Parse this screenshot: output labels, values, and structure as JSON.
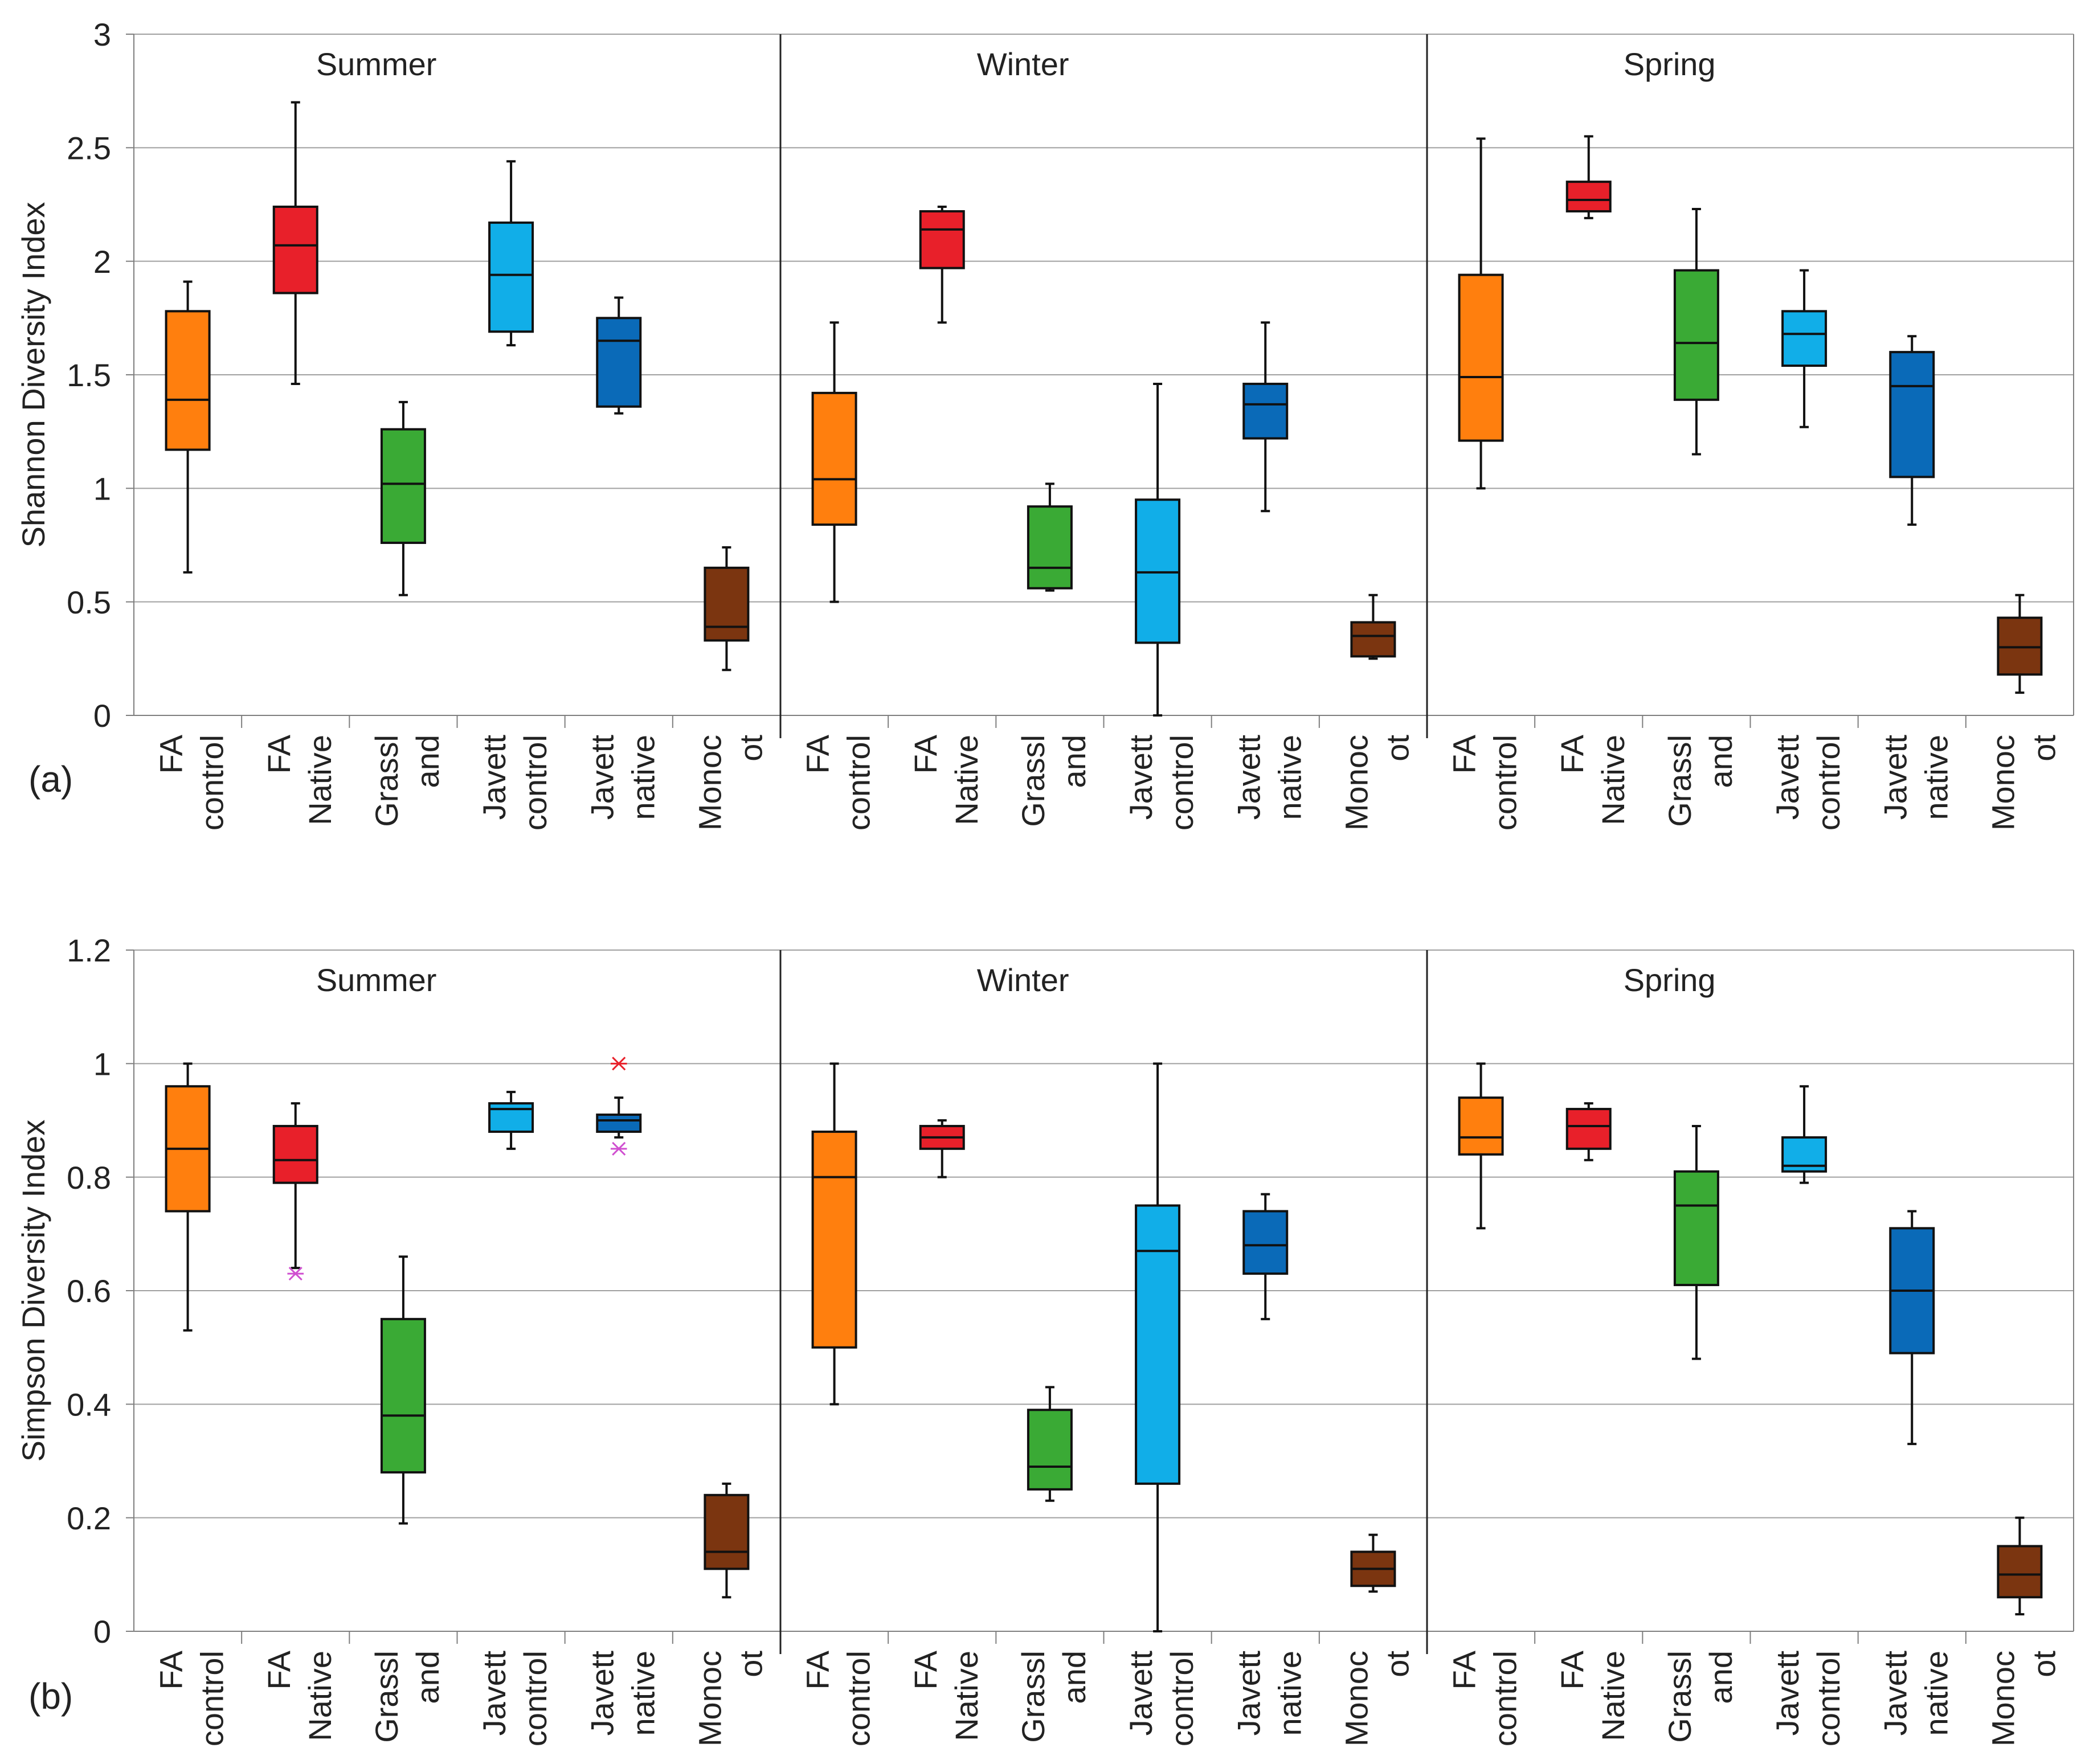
{
  "colors": {
    "FA control": "#ff7f0e",
    "FA Native": "#e8202a",
    "Grassland": "#3aaa35",
    "Javett control": "#11aee8",
    "Javett native": "#0a6ab8",
    "Monocot": "#7b3510",
    "outlier_magenta": "#d04fd0",
    "outlier_red": "#e8202a"
  },
  "chart_data": [
    {
      "type": "box",
      "panel_label": "(a)",
      "ylabel": "Shannon Diversity Index",
      "ylim": [
        0,
        3
      ],
      "yticks": [
        "0",
        "0.5",
        "1",
        "1.5",
        "2",
        "2.5",
        "3"
      ],
      "ytick_values": [
        0,
        0.5,
        1,
        1.5,
        2,
        2.5,
        3
      ],
      "grid": true,
      "groups": [
        {
          "season": "Summer",
          "boxes": [
            {
              "category": "FA control",
              "label": [
                "FA",
                "control"
              ],
              "whisker_low": 0.63,
              "q1": 1.17,
              "median": 1.39,
              "q3": 1.78,
              "whisker_high": 1.91,
              "outliers": []
            },
            {
              "category": "FA Native",
              "label": [
                "FA",
                "Native"
              ],
              "whisker_low": 1.46,
              "q1": 1.86,
              "median": 2.07,
              "q3": 2.24,
              "whisker_high": 2.7,
              "outliers": []
            },
            {
              "category": "Grassland",
              "label": [
                "Grassl",
                "and"
              ],
              "whisker_low": 0.53,
              "q1": 0.76,
              "median": 1.02,
              "q3": 1.26,
              "whisker_high": 1.38,
              "outliers": []
            },
            {
              "category": "Javett control",
              "label": [
                "Javett",
                "control"
              ],
              "whisker_low": 1.63,
              "q1": 1.69,
              "median": 1.94,
              "q3": 2.17,
              "whisker_high": 2.44,
              "outliers": []
            },
            {
              "category": "Javett native",
              "label": [
                "Javett",
                "native"
              ],
              "whisker_low": 1.33,
              "q1": 1.36,
              "median": 1.65,
              "q3": 1.75,
              "whisker_high": 1.84,
              "outliers": []
            },
            {
              "category": "Monocot",
              "label": [
                "Monoc",
                "ot"
              ],
              "whisker_low": 0.2,
              "q1": 0.33,
              "median": 0.39,
              "q3": 0.65,
              "whisker_high": 0.74,
              "outliers": []
            }
          ]
        },
        {
          "season": "Winter",
          "boxes": [
            {
              "category": "FA control",
              "label": [
                "FA",
                "control"
              ],
              "whisker_low": 0.5,
              "q1": 0.84,
              "median": 1.04,
              "q3": 1.42,
              "whisker_high": 1.73,
              "outliers": []
            },
            {
              "category": "FA Native",
              "label": [
                "FA",
                "Native"
              ],
              "whisker_low": 1.73,
              "q1": 1.97,
              "median": 2.14,
              "q3": 2.22,
              "whisker_high": 2.24,
              "outliers": []
            },
            {
              "category": "Grassland",
              "label": [
                "Grassl",
                "and"
              ],
              "whisker_low": 0.55,
              "q1": 0.56,
              "median": 0.65,
              "q3": 0.92,
              "whisker_high": 1.02,
              "outliers": []
            },
            {
              "category": "Javett control",
              "label": [
                "Javett",
                "control"
              ],
              "whisker_low": 0.0,
              "q1": 0.32,
              "median": 0.63,
              "q3": 0.95,
              "whisker_high": 1.46,
              "outliers": []
            },
            {
              "category": "Javett native",
              "label": [
                "Javett",
                "native"
              ],
              "whisker_low": 0.9,
              "q1": 1.22,
              "median": 1.37,
              "q3": 1.46,
              "whisker_high": 1.73,
              "outliers": []
            },
            {
              "category": "Monocot",
              "label": [
                "Monoc",
                "ot"
              ],
              "whisker_low": 0.25,
              "q1": 0.26,
              "median": 0.35,
              "q3": 0.41,
              "whisker_high": 0.53,
              "outliers": []
            }
          ]
        },
        {
          "season": "Spring",
          "boxes": [
            {
              "category": "FA control",
              "label": [
                "FA",
                "control"
              ],
              "whisker_low": 1.0,
              "q1": 1.21,
              "median": 1.49,
              "q3": 1.94,
              "whisker_high": 2.54,
              "outliers": []
            },
            {
              "category": "FA Native",
              "label": [
                "FA",
                "Native"
              ],
              "whisker_low": 2.19,
              "q1": 2.22,
              "median": 2.27,
              "q3": 2.35,
              "whisker_high": 2.55,
              "outliers": []
            },
            {
              "category": "Grassland",
              "label": [
                "Grassl",
                "and"
              ],
              "whisker_low": 1.15,
              "q1": 1.39,
              "median": 1.64,
              "q3": 1.96,
              "whisker_high": 2.23,
              "outliers": []
            },
            {
              "category": "Javett control",
              "label": [
                "Javett",
                "control"
              ],
              "whisker_low": 1.27,
              "q1": 1.54,
              "median": 1.68,
              "q3": 1.78,
              "whisker_high": 1.96,
              "outliers": []
            },
            {
              "category": "Javett native",
              "label": [
                "Javett",
                "native"
              ],
              "whisker_low": 0.84,
              "q1": 1.05,
              "median": 1.45,
              "q3": 1.6,
              "whisker_high": 1.67,
              "outliers": []
            },
            {
              "category": "Monocot",
              "label": [
                "Monoc",
                "ot"
              ],
              "whisker_low": 0.1,
              "q1": 0.18,
              "median": 0.3,
              "q3": 0.43,
              "whisker_high": 0.53,
              "outliers": []
            }
          ]
        }
      ]
    },
    {
      "type": "box",
      "panel_label": "(b)",
      "ylabel": "Simpson Diversity Index",
      "ylim": [
        0,
        1.2
      ],
      "yticks": [
        "0",
        "0.2",
        "0.4",
        "0.6",
        "0.8",
        "1",
        "1.2"
      ],
      "ytick_values": [
        0,
        0.2,
        0.4,
        0.6,
        0.8,
        1.0,
        1.2
      ],
      "grid": true,
      "groups": [
        {
          "season": "Summer",
          "boxes": [
            {
              "category": "FA control",
              "label": [
                "FA",
                "control"
              ],
              "whisker_low": 0.53,
              "q1": 0.74,
              "median": 0.85,
              "q3": 0.96,
              "whisker_high": 1.0,
              "outliers": []
            },
            {
              "category": "FA Native",
              "label": [
                "FA",
                "Native"
              ],
              "whisker_low": 0.64,
              "q1": 0.79,
              "median": 0.83,
              "q3": 0.89,
              "whisker_high": 0.93,
              "outliers": [
                {
                  "value": 0.63,
                  "color": "magenta"
                }
              ]
            },
            {
              "category": "Grassland",
              "label": [
                "Grassl",
                "and"
              ],
              "whisker_low": 0.19,
              "q1": 0.28,
              "median": 0.38,
              "q3": 0.55,
              "whisker_high": 0.66,
              "outliers": []
            },
            {
              "category": "Javett control",
              "label": [
                "Javett",
                "control"
              ],
              "whisker_low": 0.85,
              "q1": 0.88,
              "median": 0.92,
              "q3": 0.93,
              "whisker_high": 0.95,
              "outliers": []
            },
            {
              "category": "Javett native",
              "label": [
                "Javett",
                "native"
              ],
              "whisker_low": 0.87,
              "q1": 0.88,
              "median": 0.9,
              "q3": 0.91,
              "whisker_high": 0.94,
              "outliers": [
                {
                  "value": 1.0,
                  "color": "red"
                },
                {
                  "value": 0.85,
                  "color": "magenta"
                }
              ]
            },
            {
              "category": "Monocot",
              "label": [
                "Monoc",
                "ot"
              ],
              "whisker_low": 0.06,
              "q1": 0.11,
              "median": 0.14,
              "q3": 0.24,
              "whisker_high": 0.26,
              "outliers": []
            }
          ]
        },
        {
          "season": "Winter",
          "boxes": [
            {
              "category": "FA control",
              "label": [
                "FA",
                "control"
              ],
              "whisker_low": 0.4,
              "q1": 0.5,
              "median": 0.8,
              "q3": 0.88,
              "whisker_high": 1.0,
              "outliers": []
            },
            {
              "category": "FA Native",
              "label": [
                "FA",
                "Native"
              ],
              "whisker_low": 0.8,
              "q1": 0.85,
              "median": 0.87,
              "q3": 0.89,
              "whisker_high": 0.9,
              "outliers": []
            },
            {
              "category": "Grassland",
              "label": [
                "Grassl",
                "and"
              ],
              "whisker_low": 0.23,
              "q1": 0.25,
              "median": 0.29,
              "q3": 0.39,
              "whisker_high": 0.43,
              "outliers": []
            },
            {
              "category": "Javett control",
              "label": [
                "Javett",
                "control"
              ],
              "whisker_low": 0.0,
              "q1": 0.26,
              "median": 0.67,
              "q3": 0.75,
              "whisker_high": 1.0,
              "outliers": []
            },
            {
              "category": "Javett native",
              "label": [
                "Javett",
                "native"
              ],
              "whisker_low": 0.55,
              "q1": 0.63,
              "median": 0.68,
              "q3": 0.74,
              "whisker_high": 0.77,
              "outliers": []
            },
            {
              "category": "Monocot",
              "label": [
                "Monoc",
                "ot"
              ],
              "whisker_low": 0.07,
              "q1": 0.08,
              "median": 0.11,
              "q3": 0.14,
              "whisker_high": 0.17,
              "outliers": []
            }
          ]
        },
        {
          "season": "Spring",
          "boxes": [
            {
              "category": "FA control",
              "label": [
                "FA",
                "control"
              ],
              "whisker_low": 0.71,
              "q1": 0.84,
              "median": 0.87,
              "q3": 0.94,
              "whisker_high": 1.0,
              "outliers": []
            },
            {
              "category": "FA Native",
              "label": [
                "FA",
                "Native"
              ],
              "whisker_low": 0.83,
              "q1": 0.85,
              "median": 0.89,
              "q3": 0.92,
              "whisker_high": 0.93,
              "outliers": []
            },
            {
              "category": "Grassland",
              "label": [
                "Grassl",
                "and"
              ],
              "whisker_low": 0.48,
              "q1": 0.61,
              "median": 0.75,
              "q3": 0.81,
              "whisker_high": 0.89,
              "outliers": []
            },
            {
              "category": "Javett control",
              "label": [
                "Javett",
                "control"
              ],
              "whisker_low": 0.79,
              "q1": 0.81,
              "median": 0.82,
              "q3": 0.87,
              "whisker_high": 0.96,
              "outliers": []
            },
            {
              "category": "Javett native",
              "label": [
                "Javett",
                "native"
              ],
              "whisker_low": 0.33,
              "q1": 0.49,
              "median": 0.6,
              "q3": 0.71,
              "whisker_high": 0.74,
              "outliers": []
            },
            {
              "category": "Monocot",
              "label": [
                "Monoc",
                "ot"
              ],
              "whisker_low": 0.03,
              "q1": 0.06,
              "median": 0.1,
              "q3": 0.15,
              "whisker_high": 0.2,
              "outliers": []
            }
          ]
        }
      ]
    }
  ]
}
